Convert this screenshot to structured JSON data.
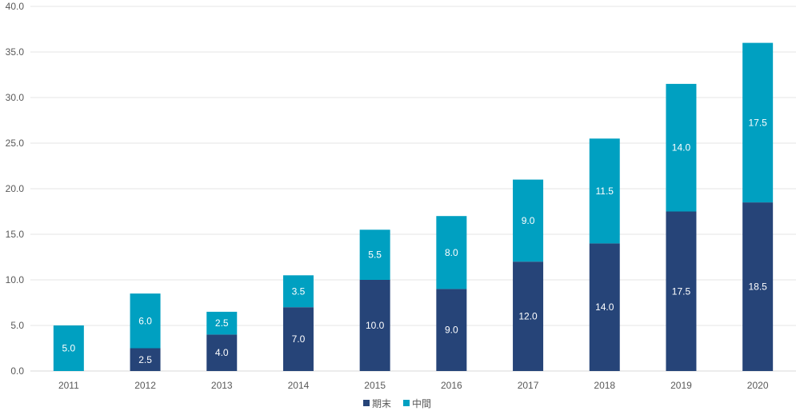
{
  "chart_data": {
    "type": "bar",
    "stacked": true,
    "categories": [
      "2011",
      "2012",
      "2013",
      "2014",
      "2015",
      "2016",
      "2017",
      "2018",
      "2019",
      "2020"
    ],
    "series": [
      {
        "name": "期末",
        "color": "#264478",
        "values": [
          0,
          2.5,
          4.0,
          7.0,
          10.0,
          9.0,
          12.0,
          14.0,
          17.5,
          18.5
        ]
      },
      {
        "name": "中間",
        "color": "#00A0C1",
        "values": [
          5.0,
          6.0,
          2.5,
          3.5,
          5.5,
          8.0,
          9.0,
          11.5,
          14.0,
          17.5
        ]
      }
    ],
    "y_ticks": [
      "0.0",
      "5.0",
      "10.0",
      "15.0",
      "20.0",
      "25.0",
      "30.0",
      "35.0",
      "40.0"
    ],
    "ylim": [
      0,
      40
    ],
    "y_step": 5,
    "gridlines": true,
    "legend_position": "bottom-center",
    "title": "",
    "xlabel": "",
    "ylabel": ""
  }
}
